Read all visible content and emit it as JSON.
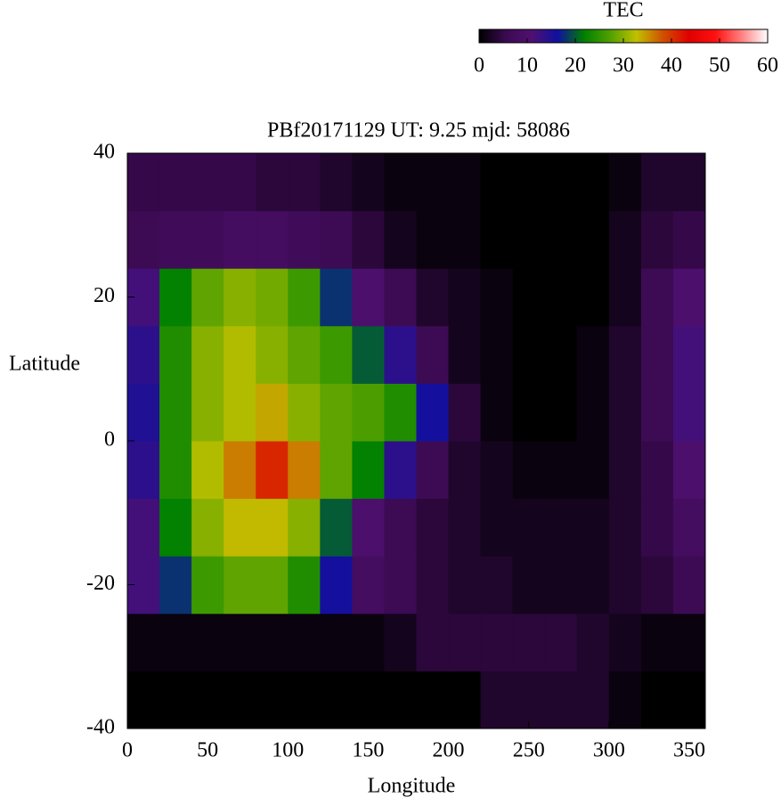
{
  "chart_data": {
    "type": "heatmap",
    "title": "PBf20171129  UT: 9.25  mjd: 58086",
    "xlabel": "Longitude",
    "ylabel": "Latitude",
    "xbins": [
      0,
      20,
      40,
      60,
      80,
      100,
      120,
      140,
      160,
      180,
      200,
      220,
      240,
      260,
      280,
      300,
      320,
      340,
      360
    ],
    "ybins": [
      -40,
      -32,
      -24,
      -16,
      -8,
      0,
      8,
      16,
      24,
      32,
      40
    ],
    "values": [
      [
        0,
        0,
        0,
        0,
        0,
        0,
        0,
        0,
        0,
        0,
        0,
        3,
        3,
        3,
        3,
        1,
        0,
        0
      ],
      [
        1,
        1,
        1,
        1,
        1,
        1,
        1,
        1,
        2,
        4,
        4,
        4,
        4,
        4,
        3,
        2,
        1,
        1
      ],
      [
        12,
        18,
        26,
        28,
        28,
        24,
        16,
        8,
        6,
        4,
        3,
        3,
        2,
        2,
        2,
        3,
        4,
        6
      ],
      [
        12,
        22,
        30,
        33,
        33,
        30,
        20,
        10,
        6,
        4,
        3,
        2,
        2,
        2,
        2,
        3,
        5,
        8
      ],
      [
        14,
        24,
        32,
        36,
        41,
        36,
        28,
        22,
        14,
        6,
        3,
        2,
        1,
        1,
        1,
        3,
        5,
        10
      ],
      [
        15,
        24,
        30,
        32,
        34,
        30,
        28,
        27,
        24,
        16,
        4,
        1,
        0,
        0,
        1,
        3,
        6,
        12
      ],
      [
        14,
        24,
        30,
        32,
        30,
        28,
        26,
        20,
        14,
        6,
        2,
        1,
        0,
        0,
        1,
        3,
        6,
        12
      ],
      [
        12,
        22,
        28,
        30,
        29,
        26,
        18,
        10,
        6,
        3,
        2,
        1,
        0,
        0,
        0,
        2,
        6,
        10
      ],
      [
        6,
        7,
        7,
        8,
        8,
        7,
        6,
        4,
        2,
        1,
        1,
        0,
        0,
        0,
        0,
        2,
        4,
        5
      ],
      [
        5,
        5,
        5,
        5,
        4,
        4,
        3,
        2,
        1,
        1,
        1,
        0,
        0,
        0,
        0,
        1,
        3,
        3
      ]
    ],
    "xlim": [
      0,
      360
    ],
    "xticks": [
      0,
      50,
      100,
      150,
      200,
      250,
      300,
      350
    ],
    "ylim": [
      -40,
      40
    ],
    "yticks": [
      -40,
      -20,
      0,
      20,
      40
    ],
    "colorbar": {
      "title": "TEC",
      "lim": [
        0,
        60
      ],
      "ticks": [
        0,
        10,
        20,
        30,
        40,
        50,
        60
      ],
      "colormap": [
        "#000000",
        "#3a0a50",
        "#501070",
        "#1010a0",
        "#008000",
        "#50a000",
        "#c0c000",
        "#d05000",
        "#e00000",
        "#ff1010",
        "#ff8080",
        "#ffffff"
      ]
    }
  }
}
